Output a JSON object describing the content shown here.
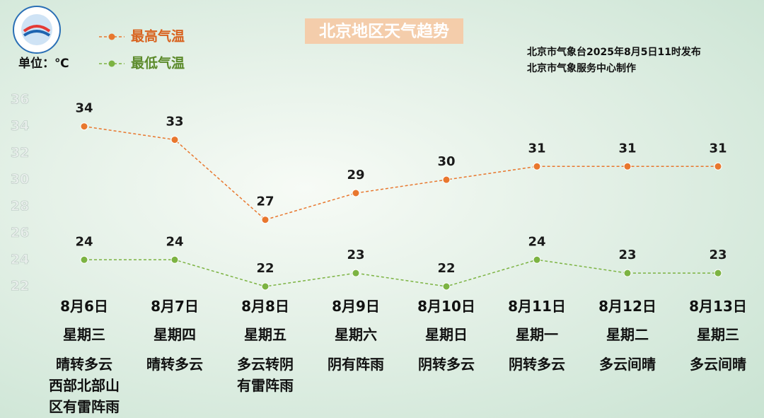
{
  "chart_data": {
    "type": "line",
    "title": "北京地区天气趋势",
    "unit_label": "单位：℃",
    "source": [
      "北京市气象台2025年8月5日11时发布",
      "北京市气象服务中心制作"
    ],
    "categories": [
      "8月6日",
      "8月7日",
      "8月8日",
      "8月9日",
      "8月10日",
      "8月11日",
      "8月12日",
      "8月13日"
    ],
    "weekdays": [
      "星期三",
      "星期四",
      "星期五",
      "星期六",
      "星期日",
      "星期一",
      "星期二",
      "星期三"
    ],
    "weather": [
      "晴转多云\n西部北部山区有雷阵雨",
      "晴转多云",
      "多云转阴\n有雷阵雨",
      "阴有阵雨",
      "阴转多云",
      "阴转多云",
      "多云间晴",
      "多云间晴"
    ],
    "series": [
      {
        "name": "最高气温",
        "color": "#e8772e",
        "values": [
          34,
          33,
          27,
          29,
          30,
          31,
          31,
          31
        ]
      },
      {
        "name": "最低气温",
        "color": "#7cb342",
        "values": [
          24,
          24,
          22,
          23,
          22,
          24,
          23,
          23
        ]
      }
    ],
    "ylim": [
      22,
      36
    ],
    "yticks": [
      22,
      24,
      26,
      28,
      30,
      32,
      34,
      36
    ]
  }
}
